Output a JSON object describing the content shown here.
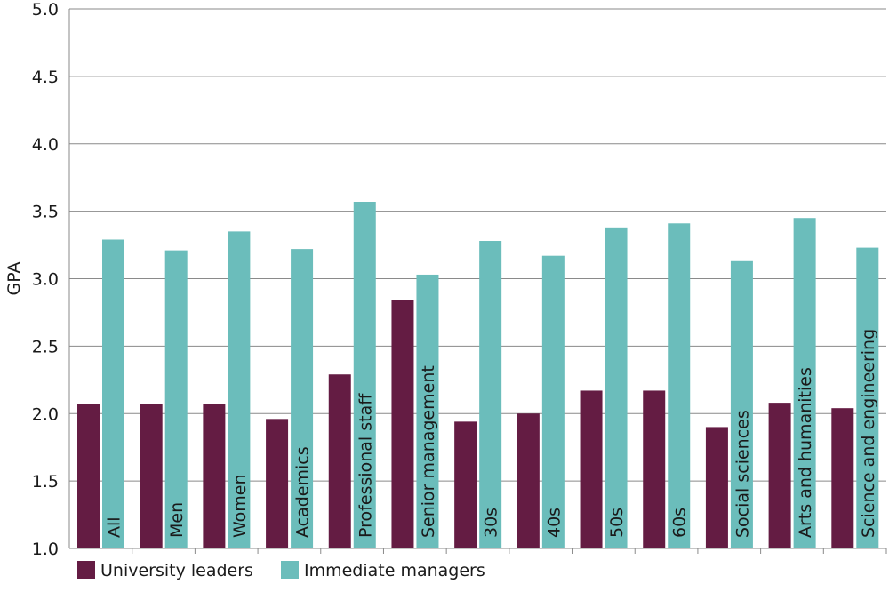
{
  "chart_data": {
    "type": "bar",
    "title": "",
    "xlabel": "",
    "ylabel": "GPA",
    "ylim": [
      1.0,
      5.0
    ],
    "yticks": [
      "1.0",
      "1.5",
      "2.0",
      "2.5",
      "3.0",
      "3.5",
      "4.0",
      "4.5",
      "5.0"
    ],
    "grid": true,
    "legend_position": "bottom-left",
    "categories": [
      "All",
      "Men",
      "Women",
      "Academics",
      "Professional staff",
      "Senior management",
      "30s",
      "40s",
      "50s",
      "60s",
      "Social sciences",
      "Arts and humanities",
      "Science and engineering"
    ],
    "series": [
      {
        "name": "University leaders",
        "color": "#641c43",
        "values": [
          2.07,
          2.07,
          2.07,
          1.96,
          2.29,
          2.84,
          1.94,
          2.0,
          2.17,
          2.17,
          1.9,
          2.08,
          2.04
        ]
      },
      {
        "name": "Immediate managers",
        "color": "#6bbdbb",
        "values": [
          3.29,
          3.21,
          3.35,
          3.22,
          3.57,
          3.03,
          3.28,
          3.17,
          3.38,
          3.41,
          3.13,
          3.45,
          3.23
        ]
      }
    ]
  }
}
